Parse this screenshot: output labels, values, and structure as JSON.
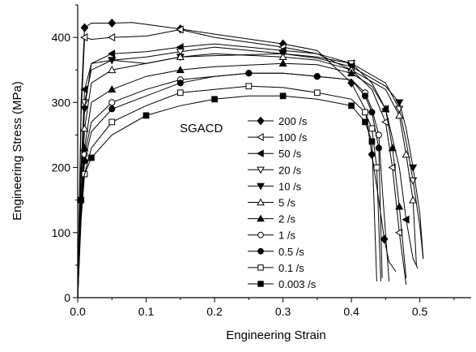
{
  "chart_data": {
    "type": "line",
    "title": "",
    "xlabel": "Engineering Strain",
    "ylabel": "Engineering Stress (MPa)",
    "xlim": [
      0.0,
      0.575
    ],
    "ylim": [
      0,
      450
    ],
    "xticks": [
      0.0,
      0.1,
      0.2,
      0.3,
      0.4,
      0.5
    ],
    "xtick_labels": [
      "0.0",
      "0.1",
      "0.2",
      "0.3",
      "0.4",
      "0.5"
    ],
    "yticks": [
      0,
      100,
      200,
      300,
      400
    ],
    "ytick_labels": [
      "0",
      "100",
      "200",
      "300",
      "400"
    ],
    "grid": false,
    "legend_position": "center-right",
    "annotation": "SGACD",
    "series": [
      {
        "name": "200 /s",
        "marker": "diamond-filled",
        "x": [
          0.0,
          0.005,
          0.01,
          0.02,
          0.05,
          0.08,
          0.15,
          0.2,
          0.3,
          0.35,
          0.4,
          0.42,
          0.43,
          0.44,
          0.448,
          0.455,
          0.465
        ],
        "y": [
          0,
          300,
          415,
          422,
          422,
          423,
          413,
          405,
          390,
          380,
          330,
          290,
          220,
          150,
          90,
          55,
          40
        ]
      },
      {
        "name": "100 /s",
        "marker": "triangle-left-open",
        "x": [
          0.0,
          0.005,
          0.01,
          0.02,
          0.05,
          0.1,
          0.15,
          0.2,
          0.3,
          0.35,
          0.4,
          0.43,
          0.45,
          0.46,
          0.47,
          0.48
        ],
        "y": [
          0,
          280,
          400,
          397,
          400,
          402,
          412,
          400,
          385,
          375,
          350,
          320,
          270,
          200,
          100,
          20
        ]
      },
      {
        "name": "50 /s",
        "marker": "triangle-left-filled",
        "x": [
          0.0,
          0.005,
          0.01,
          0.02,
          0.05,
          0.1,
          0.15,
          0.2,
          0.3,
          0.35,
          0.4,
          0.43,
          0.45,
          0.47,
          0.48,
          0.49,
          0.497
        ],
        "y": [
          0,
          200,
          320,
          360,
          375,
          378,
          385,
          390,
          380,
          375,
          360,
          330,
          290,
          200,
          120,
          60,
          45
        ]
      },
      {
        "name": "20 /s",
        "marker": "triangle-down-open",
        "x": [
          0.0,
          0.005,
          0.01,
          0.02,
          0.05,
          0.1,
          0.15,
          0.2,
          0.3,
          0.35,
          0.4,
          0.45,
          0.47,
          0.48,
          0.49,
          0.5,
          0.505
        ],
        "y": [
          0,
          200,
          300,
          350,
          365,
          370,
          378,
          385,
          375,
          370,
          360,
          330,
          290,
          240,
          180,
          110,
          60
        ]
      },
      {
        "name": "10 /s",
        "marker": "triangle-down-filled",
        "x": [
          0.0,
          0.005,
          0.01,
          0.02,
          0.05,
          0.1,
          0.15,
          0.2,
          0.3,
          0.35,
          0.4,
          0.45,
          0.47,
          0.48,
          0.49,
          0.5,
          0.505
        ],
        "y": [
          0,
          180,
          290,
          360,
          365,
          360,
          370,
          372,
          375,
          368,
          355,
          325,
          300,
          260,
          200,
          130,
          60
        ]
      },
      {
        "name": "5 /s",
        "marker": "triangle-up-open",
        "x": [
          0.0,
          0.005,
          0.01,
          0.02,
          0.05,
          0.1,
          0.15,
          0.2,
          0.3,
          0.35,
          0.4,
          0.45,
          0.47,
          0.48,
          0.49,
          0.495
        ],
        "y": [
          0,
          150,
          260,
          330,
          350,
          360,
          370,
          375,
          370,
          365,
          350,
          320,
          280,
          220,
          150,
          50
        ]
      },
      {
        "name": "2 /s",
        "marker": "triangle-up-filled",
        "x": [
          0.0,
          0.005,
          0.01,
          0.02,
          0.05,
          0.1,
          0.15,
          0.2,
          0.3,
          0.35,
          0.4,
          0.43,
          0.45,
          0.46,
          0.47,
          0.48
        ],
        "y": [
          0,
          140,
          230,
          300,
          320,
          340,
          350,
          355,
          360,
          358,
          345,
          325,
          290,
          230,
          140,
          30
        ]
      },
      {
        "name": "1 /s",
        "marker": "circle-open",
        "x": [
          0.0,
          0.005,
          0.01,
          0.02,
          0.05,
          0.1,
          0.15,
          0.2,
          0.25,
          0.3,
          0.35,
          0.4,
          0.42,
          0.43,
          0.44,
          0.445,
          0.455
        ],
        "y": [
          0,
          140,
          220,
          270,
          300,
          320,
          335,
          340,
          345,
          345,
          340,
          335,
          315,
          290,
          250,
          170,
          25
        ]
      },
      {
        "name": "0.5 /s",
        "marker": "circle-filled",
        "x": [
          0.0,
          0.005,
          0.01,
          0.02,
          0.05,
          0.1,
          0.15,
          0.2,
          0.25,
          0.3,
          0.35,
          0.4,
          0.42,
          0.43,
          0.44,
          0.445
        ],
        "y": [
          0,
          130,
          210,
          255,
          290,
          310,
          330,
          340,
          345,
          345,
          340,
          335,
          310,
          285,
          230,
          30
        ]
      },
      {
        "name": "0.1 /s",
        "marker": "square-open",
        "x": [
          0.0,
          0.005,
          0.01,
          0.02,
          0.05,
          0.1,
          0.15,
          0.2,
          0.25,
          0.3,
          0.35,
          0.4,
          0.42,
          0.43,
          0.437,
          0.443
        ],
        "y": [
          0,
          120,
          190,
          230,
          270,
          295,
          315,
          320,
          325,
          323,
          315,
          305,
          285,
          260,
          200,
          25
        ]
      },
      {
        "name": "0.003 /s",
        "marker": "square-filled",
        "x": [
          0.0,
          0.002,
          0.005,
          0.01,
          0.02,
          0.05,
          0.1,
          0.15,
          0.2,
          0.25,
          0.3,
          0.35,
          0.4,
          0.42,
          0.43,
          0.437
        ],
        "y": [
          5,
          100,
          150,
          190,
          215,
          250,
          280,
          295,
          305,
          310,
          310,
          305,
          295,
          270,
          240,
          25
        ]
      }
    ]
  }
}
